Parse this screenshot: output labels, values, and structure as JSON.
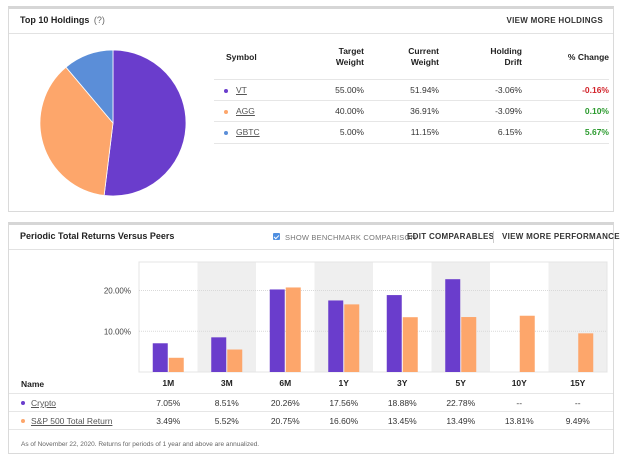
{
  "holdings_panel": {
    "title": "Top 10 Holdings",
    "help": "(?)",
    "view_more": "VIEW MORE HOLDINGS",
    "columns": {
      "symbol": "Symbol",
      "target_weight": [
        "Target",
        "Weight"
      ],
      "current_weight": [
        "Current",
        "Weight"
      ],
      "holding_drift": [
        "Holding",
        "Drift"
      ],
      "pct_change": "% Change"
    },
    "rows": [
      {
        "symbol": "VT",
        "target": "55.00%",
        "current": "51.94%",
        "drift": "-3.06%",
        "change": "-0.16%",
        "change_sign": "neg",
        "color": "#6a3dcc"
      },
      {
        "symbol": "AGG",
        "target": "40.00%",
        "current": "36.91%",
        "drift": "-3.09%",
        "change": "0.10%",
        "change_sign": "pos",
        "color": "#fda66b"
      },
      {
        "symbol": "GBTC",
        "target": "5.00%",
        "current": "11.15%",
        "drift": "6.15%",
        "change": "5.67%",
        "change_sign": "pos",
        "color": "#5b8ed8"
      }
    ],
    "pie_values": [
      51.94,
      36.91,
      11.15
    ]
  },
  "returns_panel": {
    "title": "Periodic Total Returns Versus Peers",
    "show_benchmark": "SHOW BENCHMARK COMPARISON",
    "edit_comparables": "EDIT COMPARABLES",
    "view_more": "VIEW MORE PERFORMANCE",
    "name_header": "Name",
    "footnote": "As of November 22, 2020. Returns for periods of 1 year and above are annualized."
  },
  "chart_data": {
    "type": "bar",
    "categories": [
      "1M",
      "3M",
      "6M",
      "1Y",
      "3Y",
      "5Y",
      "10Y",
      "15Y"
    ],
    "series": [
      {
        "name": "Crypto",
        "color": "#6a3dcc",
        "values": [
          7.05,
          8.51,
          20.26,
          17.56,
          18.88,
          22.78,
          null,
          null
        ],
        "labels": [
          "7.05%",
          "8.51%",
          "20.26%",
          "17.56%",
          "18.88%",
          "22.78%",
          "--",
          "--"
        ]
      },
      {
        "name": "S&P 500 Total Return",
        "color": "#fda66b",
        "values": [
          3.49,
          5.52,
          20.75,
          16.6,
          13.45,
          13.49,
          13.81,
          9.49
        ],
        "labels": [
          "3.49%",
          "5.52%",
          "20.75%",
          "16.60%",
          "13.45%",
          "13.49%",
          "13.81%",
          "9.49%"
        ]
      }
    ],
    "y_ticks": [
      "10.00%",
      "20.00%"
    ],
    "y_tick_values": [
      10,
      20
    ],
    "ylim": [
      0,
      27
    ]
  }
}
